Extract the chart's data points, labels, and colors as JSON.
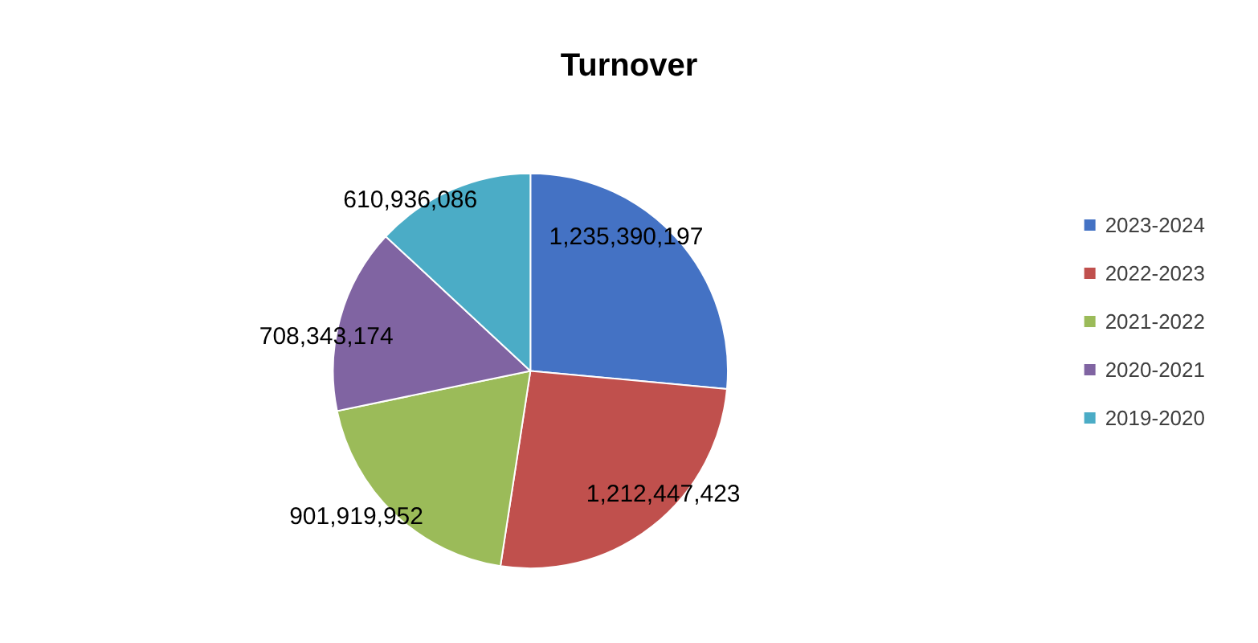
{
  "chart_data": {
    "type": "pie",
    "title": "Turnover",
    "categories": [
      "2023-2024",
      "2022-2023",
      "2021-2022",
      "2020-2021",
      "2019-2020"
    ],
    "values": [
      1235390197,
      1212447423,
      901919952,
      708343174,
      610936086
    ],
    "colors": [
      "#4472c4",
      "#c0504d",
      "#9bbb59",
      "#8064a2",
      "#4bacc6"
    ],
    "value_labels": [
      "1,235,390,197",
      "1,212,447,423",
      "901,919,952",
      "708,343,174",
      "610,936,086"
    ],
    "legend": "right"
  }
}
